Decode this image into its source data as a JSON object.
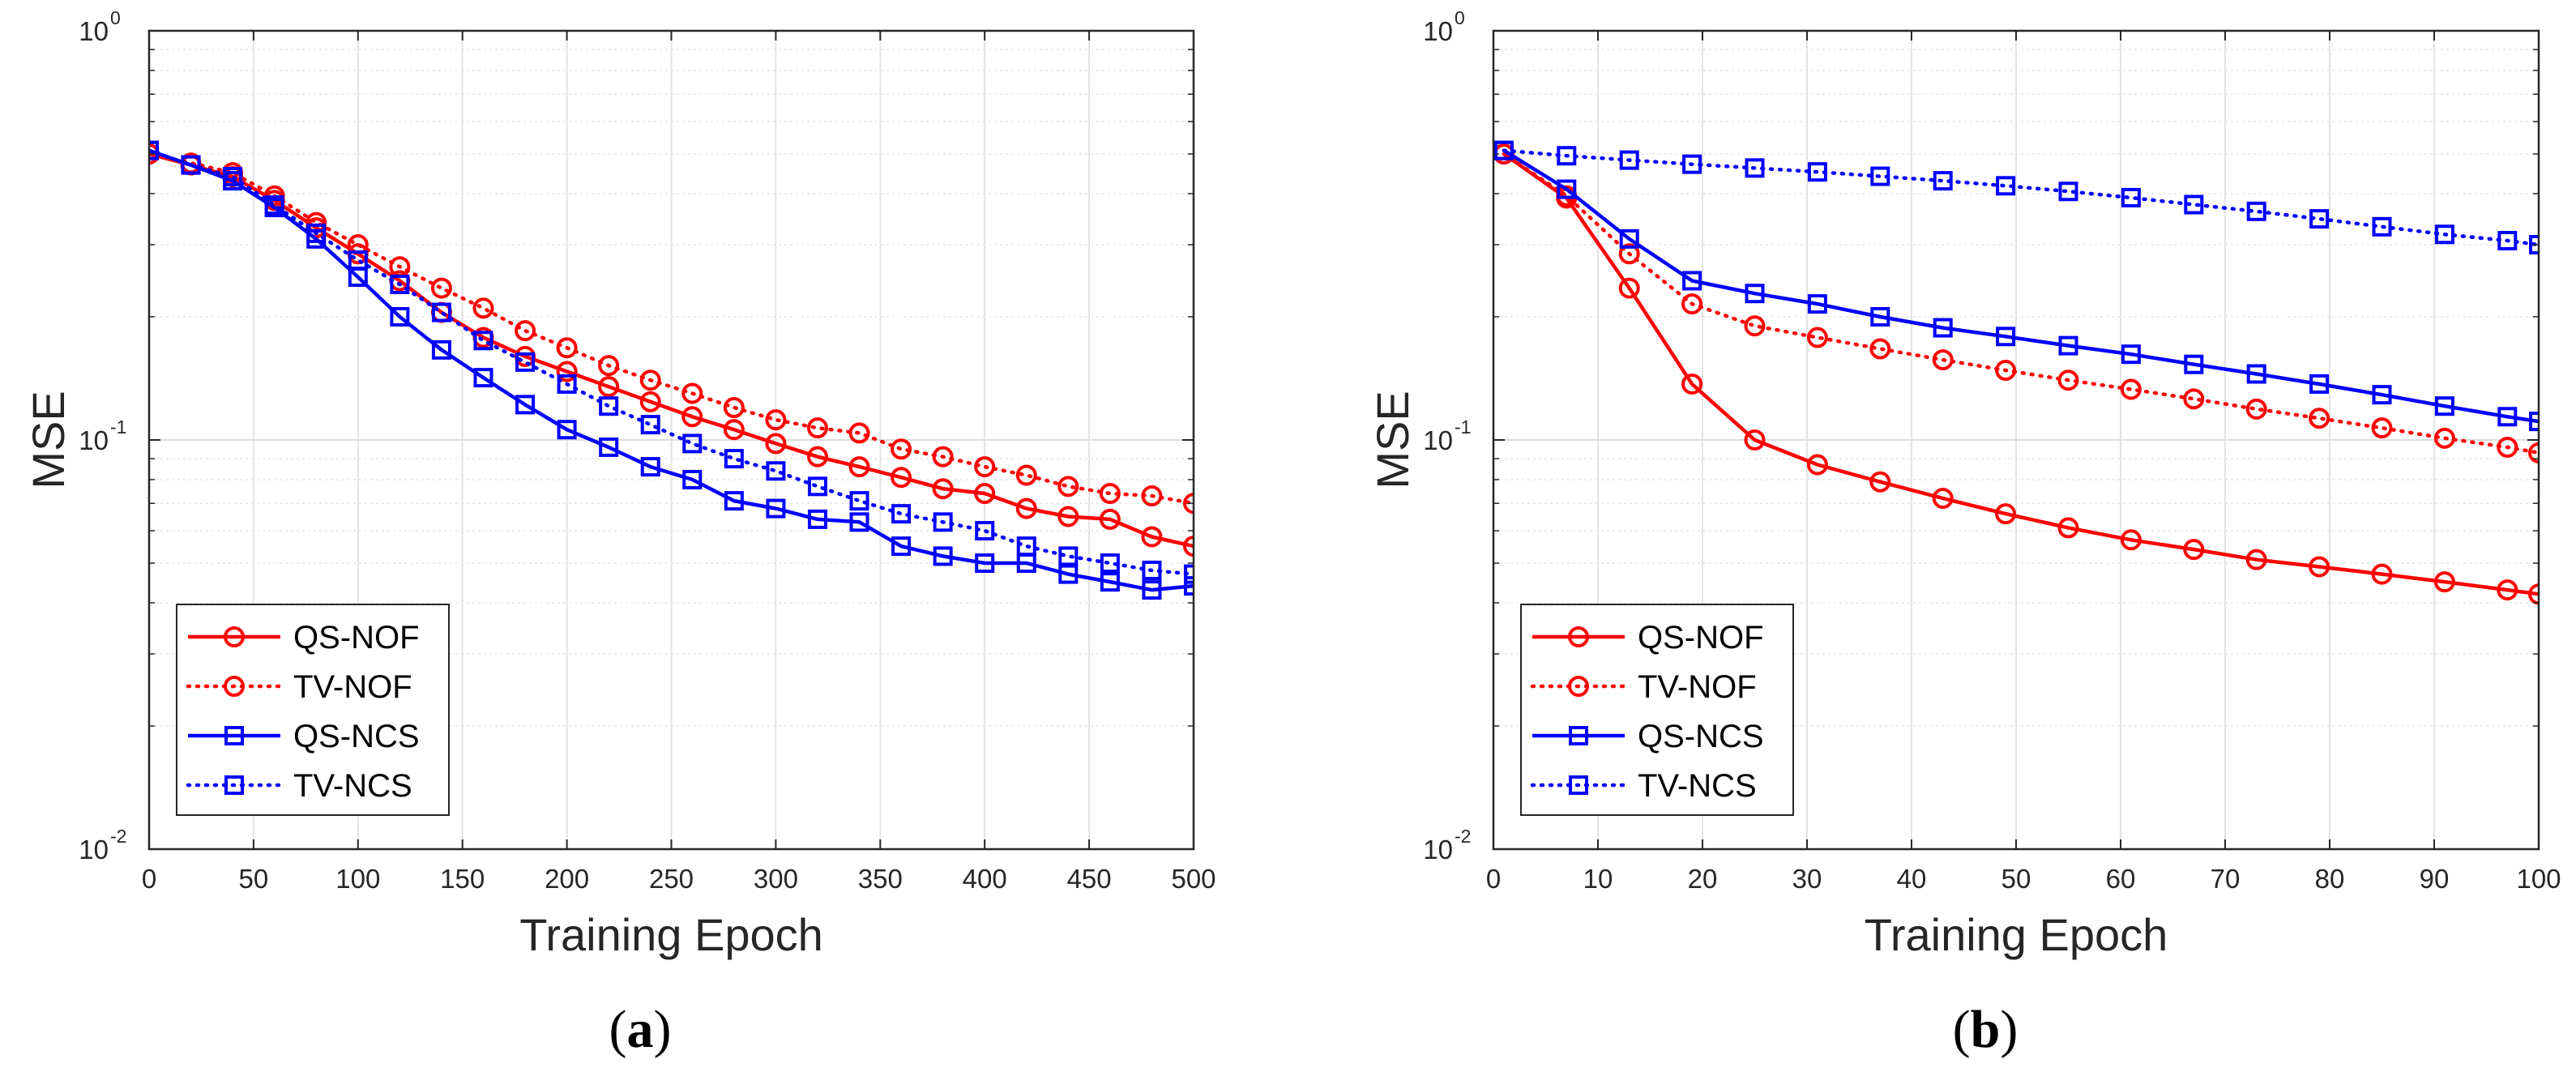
{
  "chart_data": [
    {
      "type": "line",
      "panel_label": "a",
      "xlabel": "Training Epoch",
      "ylabel": "MSE",
      "xlim": [
        0,
        500
      ],
      "ylim": [
        0.01,
        1
      ],
      "yscale": "log",
      "xticks": [
        0,
        50,
        100,
        150,
        200,
        250,
        300,
        350,
        400,
        450,
        500
      ],
      "xtick_labels": [
        "0",
        "50",
        "100",
        "150",
        "200",
        "250",
        "300",
        "350",
        "400",
        "450",
        "500"
      ],
      "yticks": [
        {
          "value": 1,
          "base": "10",
          "exp": "0"
        },
        {
          "value": 0.1,
          "base": "10",
          "exp": "-1"
        },
        {
          "value": 0.01,
          "base": "10",
          "exp": "-2"
        }
      ],
      "grid": true,
      "legend_position": "bottom-left",
      "series": [
        {
          "name": "QS-NOF",
          "color": "#ff0000",
          "line": "solid",
          "marker": "circle",
          "x": [
            0,
            20,
            40,
            60,
            80,
            100,
            120,
            140,
            160,
            180,
            200,
            220,
            240,
            260,
            280,
            300,
            320,
            340,
            360,
            380,
            400,
            420,
            440,
            460,
            480,
            500
          ],
          "values": [
            0.5,
            0.47,
            0.44,
            0.385,
            0.33,
            0.285,
            0.245,
            0.205,
            0.178,
            0.16,
            0.147,
            0.135,
            0.124,
            0.114,
            0.106,
            0.098,
            0.091,
            0.086,
            0.081,
            0.076,
            0.074,
            0.068,
            0.065,
            0.064,
            0.058,
            0.055
          ]
        },
        {
          "name": "TV-NOF",
          "color": "#ff0000",
          "line": "dotted",
          "marker": "circle",
          "x": [
            0,
            20,
            40,
            60,
            80,
            100,
            120,
            140,
            160,
            180,
            200,
            220,
            240,
            260,
            280,
            300,
            320,
            340,
            360,
            380,
            400,
            420,
            440,
            460,
            480,
            500
          ],
          "values": [
            0.5,
            0.475,
            0.45,
            0.395,
            0.34,
            0.3,
            0.265,
            0.235,
            0.21,
            0.185,
            0.168,
            0.152,
            0.14,
            0.13,
            0.12,
            0.112,
            0.107,
            0.104,
            0.095,
            0.091,
            0.086,
            0.082,
            0.077,
            0.074,
            0.073,
            0.07
          ]
        },
        {
          "name": "QS-NCS",
          "color": "#0000ff",
          "line": "solid",
          "marker": "square",
          "x": [
            0,
            20,
            40,
            60,
            80,
            100,
            120,
            140,
            160,
            180,
            200,
            220,
            240,
            260,
            280,
            300,
            320,
            340,
            360,
            380,
            400,
            420,
            440,
            460,
            480,
            500
          ],
          "values": [
            0.51,
            0.47,
            0.43,
            0.37,
            0.31,
            0.25,
            0.2,
            0.166,
            0.142,
            0.122,
            0.106,
            0.096,
            0.086,
            0.08,
            0.071,
            0.068,
            0.064,
            0.063,
            0.055,
            0.052,
            0.05,
            0.05,
            0.047,
            0.045,
            0.043,
            0.044
          ]
        },
        {
          "name": "TV-NCS",
          "color": "#0000ff",
          "line": "dotted",
          "marker": "square",
          "x": [
            0,
            20,
            40,
            60,
            80,
            100,
            120,
            140,
            160,
            180,
            200,
            220,
            240,
            260,
            280,
            300,
            320,
            340,
            360,
            380,
            400,
            420,
            440,
            460,
            480,
            500
          ],
          "values": [
            0.51,
            0.47,
            0.44,
            0.375,
            0.32,
            0.275,
            0.24,
            0.205,
            0.175,
            0.155,
            0.137,
            0.121,
            0.109,
            0.098,
            0.09,
            0.084,
            0.077,
            0.071,
            0.066,
            0.063,
            0.06,
            0.055,
            0.052,
            0.05,
            0.048,
            0.047
          ]
        }
      ]
    },
    {
      "type": "line",
      "panel_label": "b",
      "xlabel": "Training Epoch",
      "ylabel": "MSE",
      "xlim": [
        0,
        100
      ],
      "ylim": [
        0.01,
        1
      ],
      "yscale": "log",
      "xticks": [
        0,
        10,
        20,
        30,
        40,
        50,
        60,
        70,
        80,
        90,
        100
      ],
      "xtick_labels": [
        "0",
        "10",
        "20",
        "30",
        "40",
        "50",
        "60",
        "70",
        "80",
        "90",
        "100"
      ],
      "yticks": [
        {
          "value": 1,
          "base": "10",
          "exp": "0"
        },
        {
          "value": 0.1,
          "base": "10",
          "exp": "-1"
        },
        {
          "value": 0.01,
          "base": "10",
          "exp": "-2"
        }
      ],
      "grid": true,
      "legend_position": "bottom-left",
      "series": [
        {
          "name": "QS-NOF",
          "color": "#ff0000",
          "line": "solid",
          "marker": "circle",
          "x": [
            1,
            7,
            13,
            19,
            25,
            31,
            37,
            43,
            49,
            55,
            61,
            67,
            73,
            79,
            85,
            91,
            97,
            100
          ],
          "values": [
            0.5,
            0.39,
            0.235,
            0.137,
            0.1,
            0.087,
            0.079,
            0.072,
            0.066,
            0.061,
            0.057,
            0.054,
            0.051,
            0.049,
            0.047,
            0.045,
            0.043,
            0.042
          ]
        },
        {
          "name": "TV-NOF",
          "color": "#ff0000",
          "line": "dotted",
          "marker": "circle",
          "x": [
            1,
            7,
            13,
            19,
            25,
            31,
            37,
            43,
            49,
            55,
            61,
            67,
            73,
            79,
            85,
            91,
            97,
            100
          ],
          "values": [
            0.5,
            0.395,
            0.285,
            0.215,
            0.19,
            0.178,
            0.167,
            0.157,
            0.148,
            0.14,
            0.133,
            0.126,
            0.119,
            0.113,
            0.107,
            0.101,
            0.096,
            0.093
          ]
        },
        {
          "name": "QS-NCS",
          "color": "#0000ff",
          "line": "solid",
          "marker": "square",
          "x": [
            1,
            7,
            13,
            19,
            25,
            31,
            37,
            43,
            49,
            55,
            61,
            67,
            73,
            79,
            85,
            91,
            97,
            100
          ],
          "values": [
            0.51,
            0.41,
            0.31,
            0.245,
            0.228,
            0.215,
            0.2,
            0.188,
            0.179,
            0.17,
            0.162,
            0.153,
            0.145,
            0.137,
            0.129,
            0.121,
            0.114,
            0.111
          ]
        },
        {
          "name": "TV-NCS",
          "color": "#0000ff",
          "line": "dotted",
          "marker": "square",
          "x": [
            1,
            7,
            13,
            19,
            25,
            31,
            37,
            43,
            49,
            55,
            61,
            67,
            73,
            79,
            85,
            91,
            97,
            100
          ],
          "values": [
            0.51,
            0.495,
            0.483,
            0.472,
            0.462,
            0.452,
            0.441,
            0.43,
            0.418,
            0.405,
            0.391,
            0.376,
            0.362,
            0.347,
            0.332,
            0.318,
            0.307,
            0.3
          ]
        }
      ]
    }
  ]
}
